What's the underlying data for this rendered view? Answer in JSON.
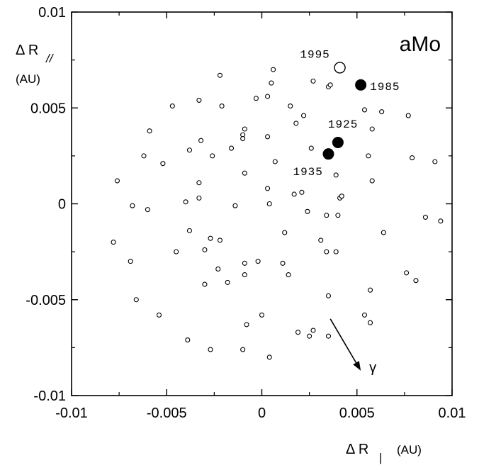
{
  "chart_data": {
    "type": "scatter",
    "panel_label": "aMo",
    "xlabel": {
      "symbol": "Δ R",
      "subscript": "|",
      "unit": "(AU)"
    },
    "ylabel": {
      "symbol": "Δ R",
      "subscript": "//",
      "unit": "(AU)"
    },
    "xlim": [
      -0.01,
      0.01
    ],
    "ylim": [
      -0.01,
      0.01
    ],
    "x_tick_labels": [
      "-0.01",
      "-0.005",
      "0",
      "0.005",
      "0.01"
    ],
    "y_tick_labels": [
      "0.01",
      "0.005",
      "0",
      "-0.005",
      "-0.01"
    ],
    "x_ticks": [
      -0.01,
      -0.005,
      0,
      0.005,
      0.01
    ],
    "y_ticks": [
      0.01,
      0.005,
      0,
      -0.005,
      -0.01
    ],
    "grid": false,
    "arrow_label": "γ",
    "arrow": {
      "from": [
        0.0036,
        -0.006
      ],
      "to": [
        0.0052,
        -0.0087
      ]
    },
    "series": [
      {
        "marker": "small-open-circle",
        "points": [
          [
            -0.0022,
            0.0067
          ],
          [
            -0.0033,
            0.0054
          ],
          [
            -0.0021,
            0.0051
          ],
          [
            -0.0047,
            0.0051
          ],
          [
            -0.0059,
            0.0038
          ],
          [
            -0.0032,
            0.0033
          ],
          [
            -0.0038,
            0.0028
          ],
          [
            -0.0026,
            0.0025
          ],
          [
            -0.0062,
            0.0025
          ],
          [
            -0.0052,
            0.0021
          ],
          [
            -0.0076,
            0.0012
          ],
          [
            -0.0033,
            0.0011
          ],
          [
            -0.004,
            0.0001
          ],
          [
            -0.0033,
            0.0003
          ],
          [
            -0.0068,
            -0.0001
          ],
          [
            -0.006,
            -0.0003
          ],
          [
            -0.0014,
            -0.0001
          ],
          [
            -0.0038,
            -0.0014
          ],
          [
            -0.0045,
            -0.0025
          ],
          [
            -0.0027,
            -0.0018
          ],
          [
            -0.0022,
            -0.0019
          ],
          [
            -0.003,
            -0.0024
          ],
          [
            -0.0078,
            -0.002
          ],
          [
            -0.0069,
            -0.003
          ],
          [
            -0.0023,
            -0.0034
          ],
          [
            -0.003,
            -0.0042
          ],
          [
            -0.0018,
            -0.0041
          ],
          [
            -0.0066,
            -0.005
          ],
          [
            -0.0054,
            -0.0058
          ],
          [
            -0.0039,
            -0.0071
          ],
          [
            -0.0027,
            -0.0076
          ],
          [
            -0.0016,
            0.0029
          ],
          [
            -0.001,
            0.0036
          ],
          [
            -0.0009,
            0.0039
          ],
          [
            -0.001,
            0.0034
          ],
          [
            -0.0009,
            0.0016
          ],
          [
            -0.0003,
            0.0055
          ],
          [
            0.0003,
            0.0056
          ],
          [
            0.0005,
            0.0063
          ],
          [
            0.0006,
            0.007
          ],
          [
            0.0003,
            0.0035
          ],
          [
            0.0007,
            0.0022
          ],
          [
            0.0003,
            0.0008
          ],
          [
            0.0004,
            0.0
          ],
          [
            0.0015,
            0.0051
          ],
          [
            0.0022,
            0.0046
          ],
          [
            0.0018,
            0.0042
          ],
          [
            0.0027,
            0.0064
          ],
          [
            0.0035,
            0.0061
          ],
          [
            0.0036,
            0.0062
          ],
          [
            0.0026,
            0.0029
          ],
          [
            0.0017,
            0.0005
          ],
          [
            0.0021,
            0.0006
          ],
          [
            0.0039,
            0.0015
          ],
          [
            0.0041,
            0.0003
          ],
          [
            0.0042,
            0.0004
          ],
          [
            0.0034,
            -0.0006
          ],
          [
            0.004,
            -0.0006
          ],
          [
            0.0024,
            -0.0004
          ],
          [
            0.0012,
            -0.0015
          ],
          [
            0.0031,
            -0.0019
          ],
          [
            0.0034,
            -0.0025
          ],
          [
            0.0039,
            -0.0025
          ],
          [
            -0.0009,
            -0.0031
          ],
          [
            -0.0002,
            -0.003
          ],
          [
            -0.0009,
            -0.0037
          ],
          [
            0.0011,
            -0.0031
          ],
          [
            0.0014,
            -0.0037
          ],
          [
            0.0035,
            -0.0048
          ],
          [
            -0.0008,
            -0.0063
          ],
          [
            0.0,
            -0.0058
          ],
          [
            0.0019,
            -0.0067
          ],
          [
            0.0027,
            -0.0066
          ],
          [
            0.0025,
            -0.0069
          ],
          [
            0.0035,
            -0.0069
          ],
          [
            -0.001,
            -0.0076
          ],
          [
            0.0004,
            -0.008
          ],
          [
            0.0054,
            0.0049
          ],
          [
            0.0058,
            0.0039
          ],
          [
            0.0063,
            0.0048
          ],
          [
            0.0077,
            0.0046
          ],
          [
            0.0056,
            0.0025
          ],
          [
            0.0058,
            0.0012
          ],
          [
            0.0079,
            0.0024
          ],
          [
            0.0091,
            0.0022
          ],
          [
            0.0086,
            -0.0007
          ],
          [
            0.0094,
            -0.0009
          ],
          [
            0.0064,
            -0.0015
          ],
          [
            0.0057,
            -0.0045
          ],
          [
            0.0076,
            -0.0036
          ],
          [
            0.0081,
            -0.004
          ],
          [
            0.0054,
            -0.0058
          ],
          [
            0.0057,
            -0.0062
          ]
        ]
      },
      {
        "marker": "large-filled-circle",
        "points": [
          [
            0.0052,
            0.0062
          ],
          [
            0.004,
            0.0032
          ],
          [
            0.0035,
            0.0026
          ]
        ]
      },
      {
        "marker": "large-open-circle",
        "points": [
          [
            0.0041,
            0.0071
          ]
        ]
      }
    ],
    "annotations": [
      {
        "text": "1995",
        "x": 0.0041,
        "y": 0.0071
      },
      {
        "text": "1985",
        "x": 0.0052,
        "y": 0.0062
      },
      {
        "text": "1925",
        "x": 0.004,
        "y": 0.0032
      },
      {
        "text": "1935",
        "x": 0.0035,
        "y": 0.0026
      }
    ]
  }
}
